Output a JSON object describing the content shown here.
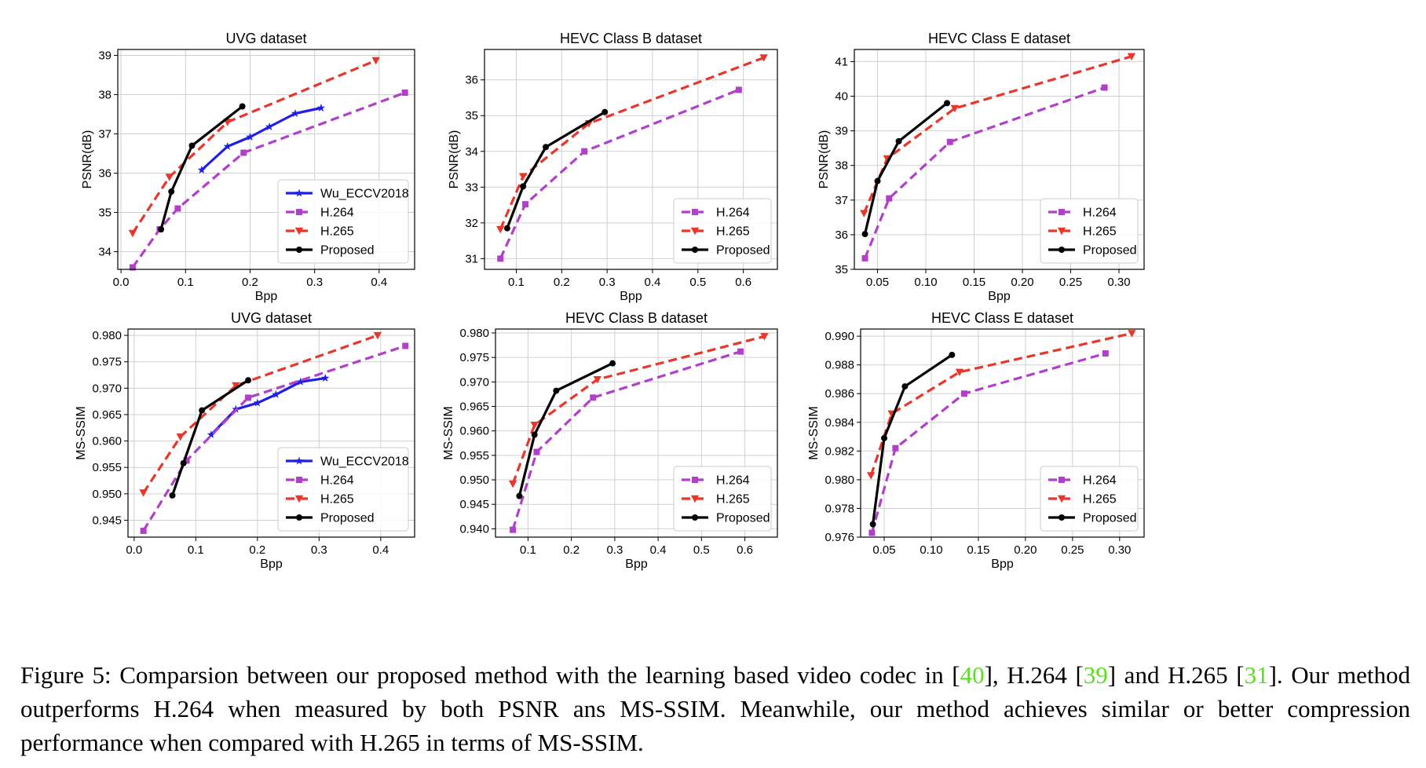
{
  "caption": {
    "p1": "Figure 5: Comparsion between our proposed method with the learning based video codec in [",
    "r1": "40",
    "p2": "], H.264 [",
    "r2": "39",
    "p3": "] and H.265 [",
    "r3": "31",
    "p4": "]. Our method outperforms H.264 when measured by both PSNR ans MS-SSIM. Meanwhile, our method achieves similar or better compression performance when compared with H.265 in terms of MS-SSIM."
  },
  "colors": {
    "Wu_ECCV2018": "#1f1fe6",
    "H.264": "#b23fc9",
    "H.265": "#e8372a",
    "Proposed": "#000000",
    "grid": "#d0d0d0"
  },
  "chart_data": [
    {
      "type": "line",
      "title": "UVG dataset",
      "xlabel": "Bpp",
      "ylabel": "PSNR(dB)",
      "xlim": [
        -0.005,
        0.455
      ],
      "ylim": [
        33.55,
        39.15
      ],
      "xticks": [
        0.0,
        0.1,
        0.2,
        0.3,
        0.4
      ],
      "xtick_labels": [
        "0.0",
        "0.1",
        "0.2",
        "0.3",
        "0.4"
      ],
      "yticks": [
        34,
        35,
        36,
        37,
        38,
        39
      ],
      "ytick_labels": [
        "34",
        "35",
        "36",
        "37",
        "38",
        "39"
      ],
      "legend": "lower-right",
      "grid": true,
      "series": [
        {
          "name": "Wu_ECCV2018",
          "style": "solid",
          "marker": "star",
          "x": [
            0.125,
            0.165,
            0.2,
            0.23,
            0.27,
            0.31
          ],
          "y": [
            36.08,
            36.68,
            36.92,
            37.18,
            37.52,
            37.66
          ]
        },
        {
          "name": "H.264",
          "style": "dashed",
          "marker": "square",
          "x": [
            0.018,
            0.06,
            0.088,
            0.19,
            0.44
          ],
          "y": [
            33.6,
            34.57,
            35.1,
            36.52,
            38.05
          ]
        },
        {
          "name": "H.265",
          "style": "dashed",
          "marker": "triangle-down",
          "x": [
            0.018,
            0.075,
            0.165,
            0.395
          ],
          "y": [
            34.47,
            35.9,
            37.3,
            38.87
          ]
        },
        {
          "name": "Proposed",
          "style": "solid",
          "marker": "circle",
          "x": [
            0.062,
            0.078,
            0.11,
            0.188
          ],
          "y": [
            34.57,
            35.53,
            36.7,
            37.7
          ]
        }
      ]
    },
    {
      "type": "line",
      "title": "HEVC Class B dataset",
      "xlabel": "Bpp",
      "ylabel": "PSNR(dB)",
      "xlim": [
        0.03,
        0.675
      ],
      "ylim": [
        30.7,
        36.85
      ],
      "xticks": [
        0.1,
        0.2,
        0.3,
        0.4,
        0.5,
        0.6
      ],
      "xtick_labels": [
        "0.1",
        "0.2",
        "0.3",
        "0.4",
        "0.5",
        "0.6"
      ],
      "yticks": [
        31,
        32,
        33,
        34,
        35,
        36
      ],
      "ytick_labels": [
        "31",
        "32",
        "33",
        "34",
        "35",
        "36"
      ],
      "legend": "lower-right",
      "grid": true,
      "series": [
        {
          "name": "H.264",
          "style": "dashed",
          "marker": "square",
          "x": [
            0.065,
            0.12,
            0.25,
            0.59
          ],
          "y": [
            31.0,
            32.52,
            34.0,
            35.72
          ]
        },
        {
          "name": "H.265",
          "style": "dashed",
          "marker": "triangle-down",
          "x": [
            0.065,
            0.115,
            0.26,
            0.645
          ],
          "y": [
            31.82,
            33.3,
            34.78,
            36.62
          ]
        },
        {
          "name": "Proposed",
          "style": "solid",
          "marker": "circle",
          "x": [
            0.08,
            0.115,
            0.165,
            0.295
          ],
          "y": [
            31.85,
            33.02,
            34.12,
            35.1
          ]
        }
      ]
    },
    {
      "type": "line",
      "title": "HEVC Class E dataset",
      "xlabel": "Bpp",
      "ylabel": "PSNR(dB)",
      "xlim": [
        0.026,
        0.326
      ],
      "ylim": [
        35.0,
        41.35
      ],
      "xticks": [
        0.05,
        0.1,
        0.15,
        0.2,
        0.25,
        0.3
      ],
      "xtick_labels": [
        "0.05",
        "0.10",
        "0.15",
        "0.20",
        "0.25",
        "0.30"
      ],
      "yticks": [
        35,
        36,
        37,
        38,
        39,
        40,
        41
      ],
      "ytick_labels": [
        "35",
        "36",
        "37",
        "38",
        "39",
        "40",
        "41"
      ],
      "legend": "lower-right",
      "grid": true,
      "series": [
        {
          "name": "H.264",
          "style": "dashed",
          "marker": "square",
          "x": [
            0.037,
            0.062,
            0.125,
            0.285
          ],
          "y": [
            35.32,
            37.05,
            38.68,
            40.25
          ]
        },
        {
          "name": "H.265",
          "style": "dashed",
          "marker": "triangle-down",
          "x": [
            0.036,
            0.06,
            0.13,
            0.313
          ],
          "y": [
            36.62,
            38.2,
            39.65,
            41.15
          ]
        },
        {
          "name": "Proposed",
          "style": "solid",
          "marker": "circle",
          "x": [
            0.037,
            0.05,
            0.072,
            0.122
          ],
          "y": [
            36.02,
            37.55,
            38.7,
            39.8
          ]
        }
      ]
    },
    {
      "type": "line",
      "title": "UVG dataset",
      "xlabel": "Bpp",
      "ylabel": "MS-SSIM",
      "xlim": [
        -0.01,
        0.455
      ],
      "ylim": [
        0.9418,
        0.9812
      ],
      "xticks": [
        0.0,
        0.1,
        0.2,
        0.3,
        0.4
      ],
      "xtick_labels": [
        "0.0",
        "0.1",
        "0.2",
        "0.3",
        "0.4"
      ],
      "yticks": [
        0.945,
        0.95,
        0.955,
        0.96,
        0.965,
        0.97,
        0.975,
        0.98
      ],
      "ytick_labels": [
        "0.945",
        "0.950",
        "0.955",
        "0.960",
        "0.965",
        "0.970",
        "0.975",
        "0.980"
      ],
      "legend": "lower-right",
      "grid": true,
      "series": [
        {
          "name": "Wu_ECCV2018",
          "style": "solid",
          "marker": "star",
          "x": [
            0.125,
            0.165,
            0.2,
            0.23,
            0.27,
            0.31
          ],
          "y": [
            0.9612,
            0.966,
            0.9672,
            0.9688,
            0.9712,
            0.9719
          ]
        },
        {
          "name": "H.264",
          "style": "dashed",
          "marker": "square",
          "x": [
            0.015,
            0.085,
            0.185,
            0.44
          ],
          "y": [
            0.943,
            0.9563,
            0.9682,
            0.978
          ]
        },
        {
          "name": "H.265",
          "style": "dashed",
          "marker": "triangle-down",
          "x": [
            0.015,
            0.075,
            0.165,
            0.395
          ],
          "y": [
            0.9502,
            0.9608,
            0.9705,
            0.98
          ]
        },
        {
          "name": "Proposed",
          "style": "solid",
          "marker": "circle",
          "x": [
            0.062,
            0.08,
            0.11,
            0.185
          ],
          "y": [
            0.9497,
            0.9558,
            0.9658,
            0.9715
          ]
        }
      ]
    },
    {
      "type": "line",
      "title": "HEVC Class B dataset",
      "xlabel": "Bpp",
      "ylabel": "MS-SSIM",
      "xlim": [
        0.025,
        0.675
      ],
      "ylim": [
        0.9383,
        0.9808
      ],
      "xticks": [
        0.1,
        0.2,
        0.3,
        0.4,
        0.5,
        0.6
      ],
      "xtick_labels": [
        "0.1",
        "0.2",
        "0.3",
        "0.4",
        "0.5",
        "0.6"
      ],
      "yticks": [
        0.94,
        0.945,
        0.95,
        0.955,
        0.96,
        0.965,
        0.97,
        0.975,
        0.98
      ],
      "ytick_labels": [
        "0.940",
        "0.945",
        "0.950",
        "0.955",
        "0.960",
        "0.965",
        "0.970",
        "0.975",
        "0.980"
      ],
      "legend": "lower-right",
      "grid": true,
      "series": [
        {
          "name": "H.264",
          "style": "dashed",
          "marker": "square",
          "x": [
            0.065,
            0.12,
            0.25,
            0.59
          ],
          "y": [
            0.9398,
            0.9557,
            0.9668,
            0.9762
          ]
        },
        {
          "name": "H.265",
          "style": "dashed",
          "marker": "triangle-down",
          "x": [
            0.065,
            0.115,
            0.26,
            0.645
          ],
          "y": [
            0.9492,
            0.9612,
            0.9705,
            0.9793
          ]
        },
        {
          "name": "Proposed",
          "style": "solid",
          "marker": "circle",
          "x": [
            0.08,
            0.115,
            0.165,
            0.295
          ],
          "y": [
            0.9467,
            0.9592,
            0.9682,
            0.9738
          ]
        }
      ]
    },
    {
      "type": "line",
      "title": "HEVC Class E dataset",
      "xlabel": "Bpp",
      "ylabel": "MS-SSIM",
      "xlim": [
        0.025,
        0.326
      ],
      "ylim": [
        0.976,
        0.9905
      ],
      "xticks": [
        0.05,
        0.1,
        0.15,
        0.2,
        0.25,
        0.3
      ],
      "xtick_labels": [
        "0.05",
        "0.10",
        "0.15",
        "0.20",
        "0.25",
        "0.30"
      ],
      "yticks": [
        0.976,
        0.978,
        0.98,
        0.982,
        0.984,
        0.986,
        0.988,
        0.99
      ],
      "ytick_labels": [
        "0.976",
        "0.978",
        "0.980",
        "0.982",
        "0.984",
        "0.986",
        "0.988",
        "0.990"
      ],
      "legend": "lower-right",
      "grid": true,
      "series": [
        {
          "name": "H.264",
          "style": "dashed",
          "marker": "square",
          "x": [
            0.037,
            0.062,
            0.135,
            0.285
          ],
          "y": [
            0.9763,
            0.9822,
            0.986,
            0.9888
          ]
        },
        {
          "name": "H.265",
          "style": "dashed",
          "marker": "triangle-down",
          "x": [
            0.036,
            0.058,
            0.13,
            0.313
          ],
          "y": [
            0.9803,
            0.9846,
            0.9875,
            0.9902
          ]
        },
        {
          "name": "Proposed",
          "style": "solid",
          "marker": "circle",
          "x": [
            0.038,
            0.05,
            0.072,
            0.122
          ],
          "y": [
            0.9769,
            0.9829,
            0.9865,
            0.9887
          ]
        }
      ]
    }
  ]
}
